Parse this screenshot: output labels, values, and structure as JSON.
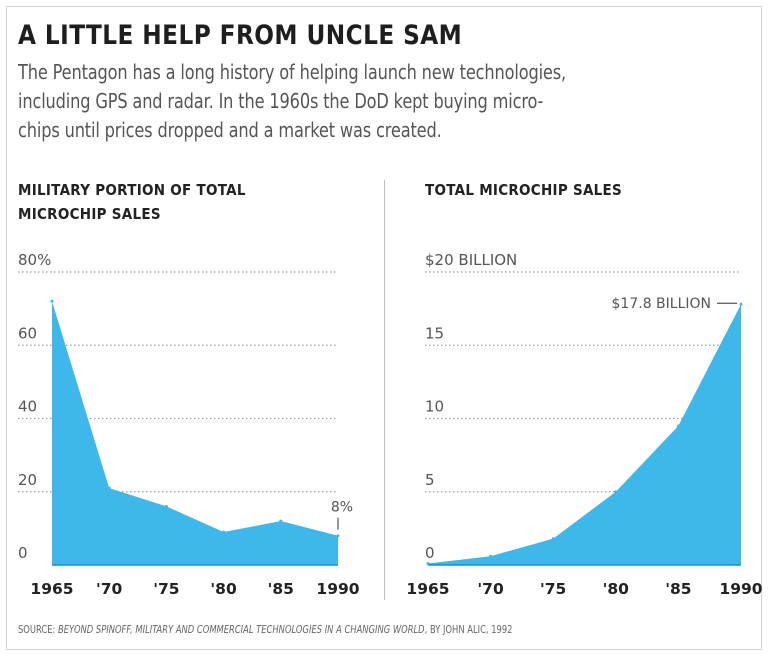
{
  "header": {
    "title": "A LITTLE HELP FROM UNCLE SAM",
    "subtitle": "The Pentagon has a long history of helping launch new technologies, including GPS and radar. In the 1960s the DoD kept buying microchips until prices dropped and a market was created.",
    "subtitle_lines": [
      "The Pentagon has a long history of helping launch new technologies,",
      "including GPS and radar. In the 1960s the DoD kept buying micro-",
      "chips until prices dropped and a market was created."
    ]
  },
  "source": {
    "prefix": "SOURCE: ",
    "title": "BEYOND SPINOFF, MILITARY AND COMMERCIAL TECHNOLOGIES IN A CHANGING WORLD",
    "suffix": ", BY JOHN ALIC, 1992"
  },
  "colors": {
    "area_fill": "#3eb8ea",
    "gridline": "#9a9a9a",
    "axis_text": "#555555",
    "tick_label": "#222222"
  },
  "chart_data": [
    {
      "type": "area",
      "title_lines": [
        "MILITARY PORTION OF TOTAL",
        "MICROCHIP SALES"
      ],
      "x": [
        1965,
        1970,
        1975,
        1980,
        1985,
        1990
      ],
      "x_tick_labels": [
        "1965",
        "'70",
        "'75",
        "'80",
        "'85",
        "1990"
      ],
      "series": [
        {
          "values": [
            72,
            21,
            16,
            9,
            12,
            8
          ]
        }
      ],
      "ylim": [
        0,
        80
      ],
      "y_ticks": [
        0,
        20,
        40,
        60,
        80
      ],
      "y_tick_labels": [
        "0",
        "20",
        "40",
        "60",
        "80%"
      ],
      "grid": true,
      "annotation": {
        "text": "8%",
        "x": 1990,
        "y": 8
      }
    },
    {
      "type": "area",
      "title_lines": [
        "TOTAL MICROCHIP SALES"
      ],
      "x": [
        1965,
        1970,
        1975,
        1980,
        1985,
        1990
      ],
      "x_tick_labels": [
        "1965",
        "'70",
        "'75",
        "'80",
        "'85",
        "1990"
      ],
      "series": [
        {
          "values": [
            0.1,
            0.6,
            1.8,
            5,
            9.5,
            17.8
          ]
        }
      ],
      "ylim": [
        0,
        20
      ],
      "y_ticks": [
        0,
        5,
        10,
        15,
        20
      ],
      "y_tick_labels": [
        "0",
        "5",
        "10",
        "15",
        "$20 BILLION"
      ],
      "grid": true,
      "annotation": {
        "text": "$17.8 BILLION",
        "x": 1990,
        "y": 17.8
      }
    }
  ]
}
